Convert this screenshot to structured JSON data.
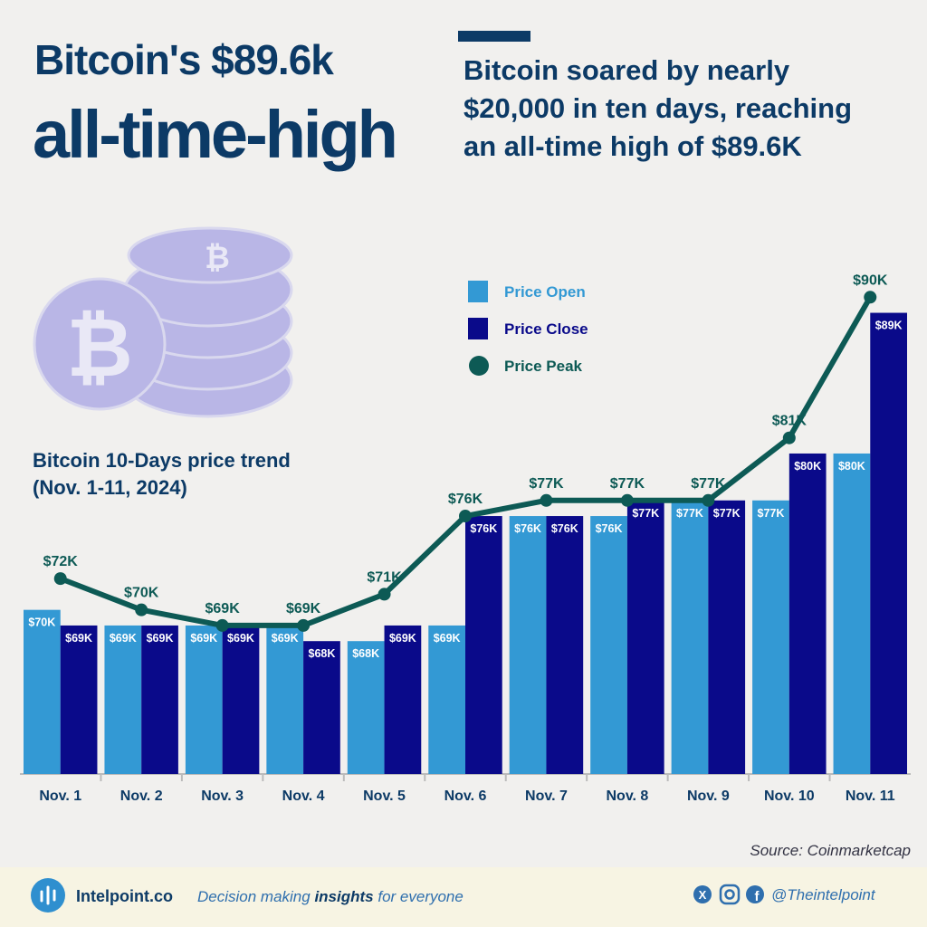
{
  "header": {
    "title_lines": [
      "Bitcoin's $89.6k",
      "all-time-high"
    ],
    "subtitle_lines": [
      "Bitcoin soared by nearly",
      "$20,000 in ten days, reaching",
      "an all-time high of $89.6K"
    ]
  },
  "chart_data": {
    "type": "bar",
    "title_lines": [
      "Bitcoin 10-Days price trend",
      "(Nov. 1-11, 2024)"
    ],
    "categories": [
      "Nov. 1",
      "Nov. 2",
      "Nov. 3",
      "Nov. 4",
      "Nov. 5",
      "Nov. 6",
      "Nov. 7",
      "Nov. 8",
      "Nov. 9",
      "Nov. 10",
      "Nov. 11"
    ],
    "ylim": [
      59.5,
      91
    ],
    "series": [
      {
        "name": "Price Open",
        "type": "bar",
        "color": "#3399d4",
        "values": [
          70,
          69,
          69,
          69,
          68,
          69,
          76,
          76,
          77,
          77,
          80
        ],
        "value_labels": [
          "$70K",
          "$69K",
          "$69K",
          "$69K",
          "$68K",
          "$69K",
          "$76K",
          "$76K",
          "$77K",
          "$77K",
          "$80K"
        ]
      },
      {
        "name": "Price Close",
        "type": "bar",
        "color": "#0a0a8a",
        "values": [
          69,
          69,
          69,
          68,
          69,
          76,
          76,
          77,
          77,
          80,
          89
        ],
        "value_labels": [
          "$69K",
          "$69K",
          "$69K",
          "$68K",
          "$69K",
          "$76K",
          "$76K",
          "$77K",
          "$77K",
          "$80K",
          "$89K"
        ]
      },
      {
        "name": "Price Peak",
        "type": "line",
        "color": "#0d5a55",
        "values": [
          72,
          70,
          69,
          69,
          71,
          76,
          77,
          77,
          77,
          81,
          90
        ],
        "value_labels": [
          "$72K",
          "$70K",
          "$69K",
          "$69K",
          "$71K",
          "$76K",
          "$77K",
          "$77K",
          "$77K",
          "$81K",
          "$90K"
        ]
      }
    ],
    "source": "Source: Coinmarketcap"
  },
  "footer": {
    "brand": "Intelpoint.co",
    "tagline_parts": [
      "Decision making ",
      "insights",
      " for everyone"
    ],
    "handle": "@Theintelpoint"
  }
}
